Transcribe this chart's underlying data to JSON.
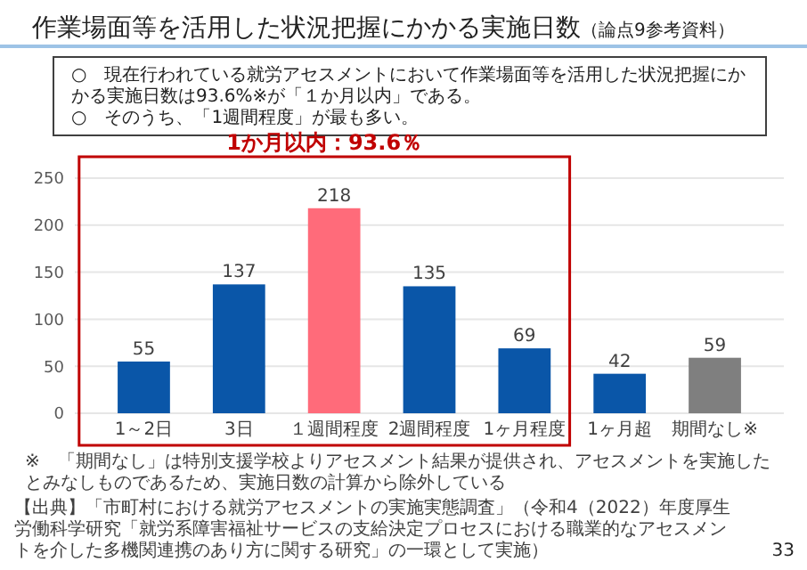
{
  "chart_data": {
    "type": "bar",
    "title": "作業場面等を活用した状況把握にかかる実施日数",
    "subtitle": "（論点9参考資料）",
    "categories": [
      "1～2日",
      "3日",
      "１週間程度",
      "2週間程度",
      "1ヶ月程度",
      "1ヶ月超",
      "期間なし※"
    ],
    "values": [
      55,
      137,
      218,
      135,
      69,
      42,
      59
    ],
    "colors": [
      "#0a56a8",
      "#0a56a8",
      "#ff6b7a",
      "#0a56a8",
      "#0a56a8",
      "#0a56a8",
      "#7f7f7f"
    ],
    "ylim": [
      0,
      250
    ],
    "yticks": [
      0,
      50,
      100,
      150,
      200,
      250
    ],
    "grid": "y",
    "data_labels": true,
    "annotations": [
      "1か月以内：93.6％",
      "○　現在行われている就労アセスメントにおいて作業場面等を活用した状況把握にかかる実施日数は93.6%※が「１か月以内」である。",
      "○　そのうち、「1週間程度」が最も多い。",
      "※　「期間なし」は特別支援学校よりアセスメント結果が提供され、アセスメントを実施したとみなしものであるため、実施日数の計算から除外している",
      "【出典】「市町村における就労アセスメントの実施実態調査」（令和4（2022）年度厚生労働科学研究「就労系障害福祉サービスの支給決定プロセスにおける職業的なアセスメントを介した多機関連携のあり方に関する研究」の一環として実施）",
      "33"
    ]
  }
}
